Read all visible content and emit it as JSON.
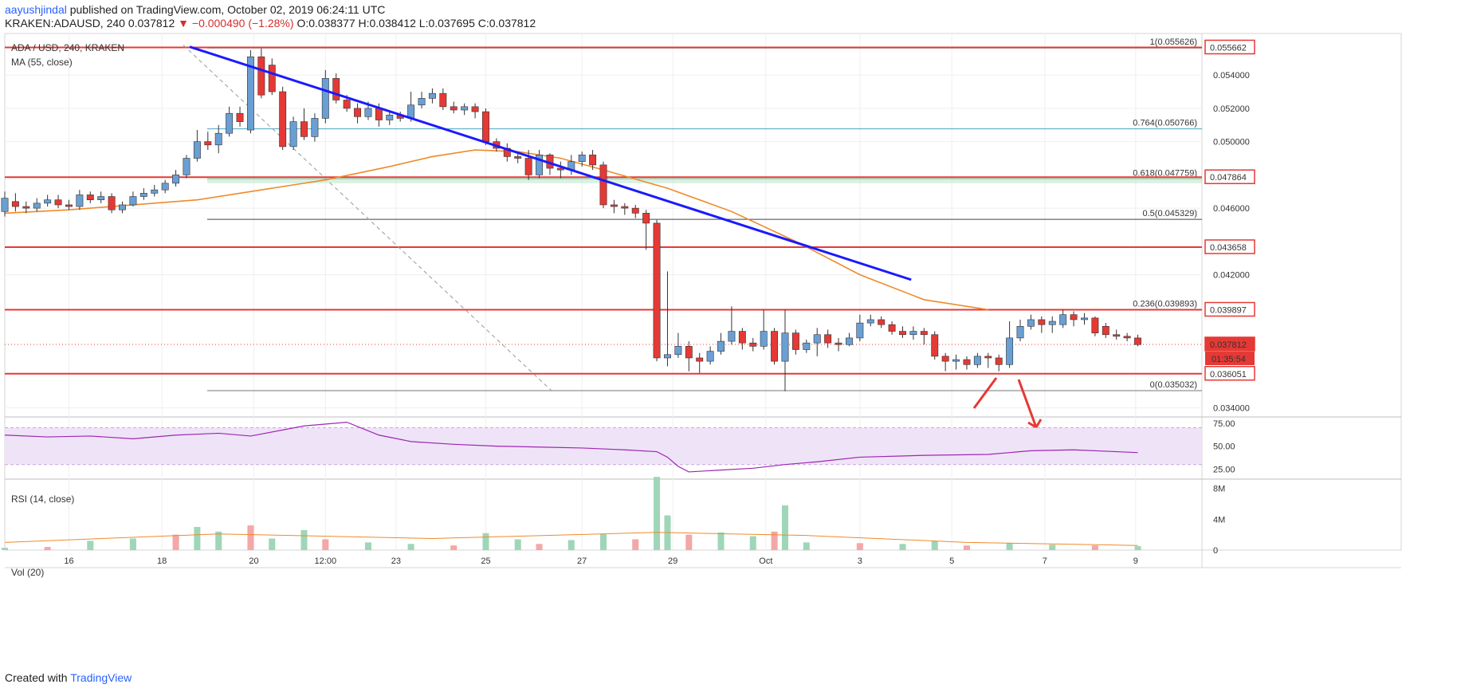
{
  "header": {
    "user": "aayushjindal",
    "published": "published on TradingView.com, October 02, 2019 06:24:11 UTC",
    "symbol": "KRAKEN:ADAUSD, 240",
    "last": "0.037812",
    "change": "▼ −0.000490 (−1.28%)",
    "ohlc": "O:0.038377 H:0.038412 L:0.037695 C:0.037812"
  },
  "footer": {
    "created": "Created with",
    "brand": "TradingView"
  },
  "colors": {
    "up": "#6a9fd4",
    "down": "#e53935",
    "ma": "#ef8a2a",
    "trend": "#1a1aff",
    "support": "#e53935",
    "rsi": "#9c27b0",
    "rsi_band": "#efe3f8",
    "vol_up": "#9fd6b8",
    "vol_down": "#f4a7a7",
    "fib_764": "#4aa3c2",
    "fib_618": "#3db37d"
  },
  "chart_data": {
    "type": "candlestick",
    "title": "ADA / USD, 240, KRAKEN",
    "ma_label": "MA (55, close)",
    "rsi_label": "RSI (14, close)",
    "vol_label": "Vol (20)",
    "ylim": [
      0.0335,
      0.0565
    ],
    "yticks": [
      "0.034000",
      "0.042000",
      "0.046000",
      "0.050000",
      "0.052000",
      "0.054000"
    ],
    "xlim": [
      0,
      112
    ],
    "xticks": [
      {
        "x": 6,
        "label": "16"
      },
      {
        "x": 14.7,
        "label": "18"
      },
      {
        "x": 23.3,
        "label": "20"
      },
      {
        "x": 30,
        "label": "12:00"
      },
      {
        "x": 36.6,
        "label": "23"
      },
      {
        "x": 45,
        "label": "25"
      },
      {
        "x": 54,
        "label": "27"
      },
      {
        "x": 62.5,
        "label": "29"
      },
      {
        "x": 71.2,
        "label": "Oct"
      },
      {
        "x": 80,
        "label": "3"
      },
      {
        "x": 88.6,
        "label": "5"
      },
      {
        "x": 97.3,
        "label": "7"
      },
      {
        "x": 105.8,
        "label": "9"
      }
    ],
    "price_tags": [
      {
        "value": 0.055662,
        "label": "0.055662",
        "style": "outline"
      },
      {
        "value": 0.047864,
        "label": "0.047864",
        "style": "outline"
      },
      {
        "value": 0.043658,
        "label": "0.043658",
        "style": "outline"
      },
      {
        "value": 0.039897,
        "label": "0.039897",
        "style": "outline"
      },
      {
        "value": 0.037812,
        "label": "0.037812",
        "style": "fill"
      },
      {
        "value": 0.036051,
        "label": "0.036051",
        "style": "outline"
      }
    ],
    "countdown": "01:35:54",
    "support_lines": [
      0.055662,
      0.047864,
      0.043658,
      0.039897,
      0.036051
    ],
    "fib": [
      {
        "ratio": "1",
        "value": 0.055626,
        "label": "1(0.055626)",
        "color": "#4aa3c2"
      },
      {
        "ratio": "0.764",
        "value": 0.050766,
        "label": "0.764(0.050766)",
        "color": "#4aa3c2"
      },
      {
        "ratio": "0.618",
        "value": 0.047759,
        "label": "0.618(0.047759)",
        "color": "#3db37d"
      },
      {
        "ratio": "0.5",
        "value": 0.045329,
        "label": "0.5(0.045329)",
        "color": "#444444"
      },
      {
        "ratio": "0.236",
        "value": 0.039893,
        "label": "0.236(0.039893)",
        "color": "#e53935"
      },
      {
        "ratio": "0",
        "value": 0.035032,
        "label": "0(0.035032)",
        "color": "#777777"
      }
    ],
    "trendline": [
      [
        17.3,
        0.0557
      ],
      [
        84.8,
        0.0417
      ]
    ],
    "fib_diagonal": [
      [
        16.7,
        0.0558
      ],
      [
        51.2,
        0.035
      ]
    ],
    "candles": [
      [
        0,
        0.0458,
        0.0466,
        0.047,
        0.0455
      ],
      [
        1,
        0.0464,
        0.0461,
        0.0469,
        0.0458
      ],
      [
        2,
        0.0461,
        0.046,
        0.0464,
        0.0457
      ],
      [
        3,
        0.046,
        0.0463,
        0.0466,
        0.0458
      ],
      [
        4,
        0.0463,
        0.0465,
        0.0468,
        0.0461
      ],
      [
        5,
        0.0465,
        0.0462,
        0.0468,
        0.046
      ],
      [
        6,
        0.0462,
        0.0461,
        0.0465,
        0.0459
      ],
      [
        7,
        0.0461,
        0.0468,
        0.0471,
        0.0459
      ],
      [
        8,
        0.0468,
        0.0465,
        0.047,
        0.0463
      ],
      [
        9,
        0.0465,
        0.0467,
        0.047,
        0.0463
      ],
      [
        10,
        0.0467,
        0.0459,
        0.0469,
        0.0457
      ],
      [
        11,
        0.0459,
        0.0462,
        0.0464,
        0.0457
      ],
      [
        12,
        0.0462,
        0.0467,
        0.047,
        0.0461
      ],
      [
        13,
        0.0467,
        0.0469,
        0.0472,
        0.0465
      ],
      [
        14,
        0.0469,
        0.0471,
        0.0474,
        0.0467
      ],
      [
        15,
        0.0471,
        0.0475,
        0.0477,
        0.0469
      ],
      [
        16,
        0.0475,
        0.048,
        0.0483,
        0.0473
      ],
      [
        17,
        0.048,
        0.049,
        0.0492,
        0.0478
      ],
      [
        18,
        0.049,
        0.05,
        0.0507,
        0.0488
      ],
      [
        19,
        0.05,
        0.0498,
        0.0506,
        0.0495
      ],
      [
        20,
        0.0498,
        0.0505,
        0.051,
        0.0493
      ],
      [
        21,
        0.0505,
        0.0517,
        0.0521,
        0.0503
      ],
      [
        22,
        0.0517,
        0.0512,
        0.0521,
        0.0509
      ],
      [
        23,
        0.0507,
        0.0551,
        0.0555,
        0.0505
      ],
      [
        24,
        0.0551,
        0.0528,
        0.0556,
        0.0526
      ],
      [
        25,
        0.0546,
        0.053,
        0.055,
        0.0528
      ],
      [
        26,
        0.053,
        0.0497,
        0.0533,
        0.0495
      ],
      [
        27,
        0.0497,
        0.0512,
        0.0515,
        0.0495
      ],
      [
        28,
        0.0512,
        0.0503,
        0.052,
        0.0501
      ],
      [
        29,
        0.0503,
        0.0514,
        0.0517,
        0.05
      ],
      [
        30,
        0.0514,
        0.0538,
        0.0543,
        0.0511
      ],
      [
        31,
        0.0538,
        0.0525,
        0.0541,
        0.0523
      ],
      [
        32,
        0.0525,
        0.052,
        0.0528,
        0.0518
      ],
      [
        33,
        0.052,
        0.0515,
        0.0523,
        0.0511
      ],
      [
        34,
        0.0515,
        0.052,
        0.0524,
        0.0513
      ],
      [
        35,
        0.052,
        0.0513,
        0.0523,
        0.0509
      ],
      [
        36,
        0.0513,
        0.0516,
        0.0518,
        0.051
      ],
      [
        37,
        0.0516,
        0.0514,
        0.0518,
        0.0512
      ],
      [
        38,
        0.0514,
        0.0522,
        0.053,
        0.0512
      ],
      [
        39,
        0.0522,
        0.0526,
        0.053,
        0.052
      ],
      [
        40,
        0.0526,
        0.0529,
        0.0532,
        0.0523
      ],
      [
        41,
        0.0529,
        0.0521,
        0.0532,
        0.0519
      ],
      [
        42,
        0.0521,
        0.0519,
        0.0524,
        0.0517
      ],
      [
        43,
        0.0519,
        0.0521,
        0.0523,
        0.0516
      ],
      [
        44,
        0.0521,
        0.0518,
        0.0523,
        0.0514
      ],
      [
        45,
        0.0518,
        0.05,
        0.052,
        0.0498
      ],
      [
        46,
        0.05,
        0.0496,
        0.0502,
        0.0494
      ],
      [
        47,
        0.0496,
        0.0491,
        0.0499,
        0.0488
      ],
      [
        48,
        0.0491,
        0.049,
        0.0494,
        0.0487
      ],
      [
        49,
        0.049,
        0.048,
        0.0495,
        0.0477
      ],
      [
        50,
        0.048,
        0.0492,
        0.0495,
        0.0478
      ],
      [
        51,
        0.0492,
        0.0484,
        0.0493,
        0.048
      ],
      [
        52,
        0.0484,
        0.0483,
        0.0488,
        0.0478
      ],
      [
        53,
        0.0483,
        0.0488,
        0.0492,
        0.048
      ],
      [
        54,
        0.0488,
        0.0492,
        0.0494,
        0.0485
      ],
      [
        55,
        0.0492,
        0.0486,
        0.0495,
        0.0483
      ],
      [
        56,
        0.0486,
        0.0462,
        0.0488,
        0.046
      ],
      [
        57,
        0.0462,
        0.0461,
        0.0465,
        0.0457
      ],
      [
        58,
        0.0461,
        0.046,
        0.0463,
        0.0456
      ],
      [
        59,
        0.046,
        0.0457,
        0.0462,
        0.0454
      ],
      [
        60,
        0.0457,
        0.0451,
        0.0459,
        0.0435
      ],
      [
        61,
        0.0451,
        0.037,
        0.0453,
        0.0368
      ],
      [
        62,
        0.037,
        0.0372,
        0.0422,
        0.0365
      ],
      [
        63,
        0.0372,
        0.0377,
        0.0385,
        0.037
      ],
      [
        64,
        0.0377,
        0.037,
        0.038,
        0.0362
      ],
      [
        65,
        0.037,
        0.0368,
        0.0373,
        0.0361
      ],
      [
        66,
        0.0368,
        0.0374,
        0.0377,
        0.0366
      ],
      [
        67,
        0.0374,
        0.038,
        0.0385,
        0.0372
      ],
      [
        68,
        0.038,
        0.0386,
        0.0401,
        0.0378
      ],
      [
        69,
        0.0386,
        0.0379,
        0.0388,
        0.0375
      ],
      [
        70,
        0.0379,
        0.0377,
        0.0382,
        0.0374
      ],
      [
        71,
        0.0377,
        0.0386,
        0.0399,
        0.0375
      ],
      [
        72,
        0.0386,
        0.0368,
        0.0388,
        0.0366
      ],
      [
        73,
        0.0368,
        0.0385,
        0.0399,
        0.035
      ],
      [
        74,
        0.0385,
        0.0375,
        0.0387,
        0.0372
      ],
      [
        75,
        0.0375,
        0.0379,
        0.0381,
        0.0373
      ],
      [
        76,
        0.0379,
        0.0384,
        0.0388,
        0.0371
      ],
      [
        77,
        0.0384,
        0.0379,
        0.0387,
        0.0376
      ],
      [
        78,
        0.0379,
        0.0378,
        0.0382,
        0.0374
      ],
      [
        79,
        0.0378,
        0.0382,
        0.0385,
        0.0377
      ],
      [
        80,
        0.0382,
        0.0391,
        0.0396,
        0.038
      ],
      [
        81,
        0.0391,
        0.0393,
        0.0396,
        0.0389
      ],
      [
        82,
        0.0393,
        0.039,
        0.0395,
        0.0388
      ],
      [
        83,
        0.039,
        0.0386,
        0.0392,
        0.0384
      ],
      [
        84,
        0.0386,
        0.0384,
        0.0389,
        0.0382
      ],
      [
        85,
        0.0384,
        0.0386,
        0.0389,
        0.0381
      ],
      [
        86,
        0.0386,
        0.0384,
        0.0388,
        0.0378
      ],
      [
        87,
        0.0384,
        0.0371,
        0.0386,
        0.0369
      ],
      [
        88,
        0.0371,
        0.0368,
        0.0373,
        0.0362
      ],
      [
        89,
        0.0368,
        0.0369,
        0.0372,
        0.0363
      ],
      [
        90,
        0.0369,
        0.0366,
        0.0371,
        0.0363
      ],
      [
        91,
        0.0366,
        0.0371,
        0.0373,
        0.0364
      ],
      [
        92,
        0.0371,
        0.037,
        0.0373,
        0.0364
      ],
      [
        93,
        0.037,
        0.0366,
        0.0372,
        0.0362
      ],
      [
        94,
        0.0366,
        0.0382,
        0.0392,
        0.0364
      ],
      [
        95,
        0.0382,
        0.0389,
        0.0393,
        0.038
      ],
      [
        96,
        0.0389,
        0.0393,
        0.0396,
        0.0387
      ],
      [
        97,
        0.0393,
        0.039,
        0.0395,
        0.0385
      ],
      [
        98,
        0.039,
        0.0392,
        0.0395,
        0.0385
      ],
      [
        99,
        0.039,
        0.0396,
        0.0399,
        0.0388
      ],
      [
        100,
        0.0396,
        0.0393,
        0.0398,
        0.0389
      ],
      [
        101,
        0.0393,
        0.0394,
        0.0397,
        0.039
      ],
      [
        102,
        0.0394,
        0.0385,
        0.0395,
        0.0383
      ],
      [
        103,
        0.0389,
        0.0384,
        0.0391,
        0.0382
      ],
      [
        104,
        0.0384,
        0.0383,
        0.0387,
        0.0381
      ],
      [
        105,
        0.0383,
        0.0382,
        0.0385,
        0.038
      ],
      [
        106,
        0.0382,
        0.0378,
        0.0384,
        0.0377
      ]
    ],
    "ma55": [
      [
        0,
        0.0457
      ],
      [
        6,
        0.0459
      ],
      [
        12,
        0.0462
      ],
      [
        18,
        0.0465
      ],
      [
        24,
        0.0471
      ],
      [
        30,
        0.0477
      ],
      [
        36,
        0.0485
      ],
      [
        40,
        0.0491
      ],
      [
        44,
        0.0495
      ],
      [
        48,
        0.0494
      ],
      [
        52,
        0.049
      ],
      [
        56,
        0.0483
      ],
      [
        62,
        0.0472
      ],
      [
        68,
        0.0458
      ],
      [
        74,
        0.044
      ],
      [
        80,
        0.042
      ],
      [
        86,
        0.0405
      ],
      [
        92,
        0.0399
      ]
    ],
    "rsi": {
      "ylim": [
        15,
        80
      ],
      "yticks": [
        "25.00",
        "50.00",
        "75.00"
      ],
      "band": [
        30,
        70
      ],
      "points": [
        [
          0,
          62
        ],
        [
          4,
          60
        ],
        [
          8,
          61
        ],
        [
          12,
          58
        ],
        [
          16,
          62
        ],
        [
          20,
          64
        ],
        [
          23,
          61
        ],
        [
          28,
          72
        ],
        [
          32,
          76
        ],
        [
          35,
          62
        ],
        [
          38,
          55
        ],
        [
          42,
          52
        ],
        [
          46,
          50
        ],
        [
          50,
          49
        ],
        [
          54,
          48
        ],
        [
          58,
          46
        ],
        [
          61,
          44
        ],
        [
          62,
          38
        ],
        [
          63,
          28
        ],
        [
          64,
          22
        ],
        [
          67,
          24
        ],
        [
          70,
          26
        ],
        [
          73,
          30
        ],
        [
          76,
          33
        ],
        [
          80,
          38
        ],
        [
          86,
          40
        ],
        [
          92,
          41
        ],
        [
          96,
          45
        ],
        [
          100,
          46
        ],
        [
          104,
          44
        ],
        [
          106,
          43
        ]
      ]
    },
    "volume": {
      "ylim": [
        0,
        9
      ],
      "yticks": [
        "0",
        "4M",
        "8M"
      ],
      "bars": [
        [
          0,
          0.3
        ],
        [
          4,
          0.4
        ],
        [
          8,
          1.2
        ],
        [
          12,
          1.5
        ],
        [
          16,
          2.0
        ],
        [
          18,
          3.0
        ],
        [
          20,
          2.4
        ],
        [
          23,
          3.2
        ],
        [
          25,
          1.5
        ],
        [
          28,
          2.6
        ],
        [
          30,
          1.4
        ],
        [
          34,
          1.0
        ],
        [
          38,
          0.8
        ],
        [
          42,
          0.6
        ],
        [
          45,
          2.2
        ],
        [
          48,
          1.4
        ],
        [
          50,
          0.8
        ],
        [
          53,
          1.3
        ],
        [
          56,
          2.1
        ],
        [
          59,
          1.4
        ],
        [
          61,
          9.5
        ],
        [
          62,
          4.5
        ],
        [
          64,
          2.0
        ],
        [
          67,
          2.3
        ],
        [
          70,
          1.8
        ],
        [
          72,
          2.4
        ],
        [
          73,
          5.8
        ],
        [
          75,
          1.0
        ],
        [
          80,
          0.9
        ],
        [
          84,
          0.8
        ],
        [
          87,
          1.2
        ],
        [
          90,
          0.6
        ],
        [
          94,
          0.9
        ],
        [
          98,
          0.7
        ],
        [
          102,
          0.6
        ],
        [
          106,
          0.5
        ]
      ],
      "ma_points": [
        [
          0,
          1.0
        ],
        [
          20,
          2.1
        ],
        [
          40,
          1.5
        ],
        [
          61,
          2.3
        ],
        [
          75,
          1.9
        ],
        [
          90,
          1.0
        ],
        [
          106,
          0.6
        ]
      ]
    }
  }
}
